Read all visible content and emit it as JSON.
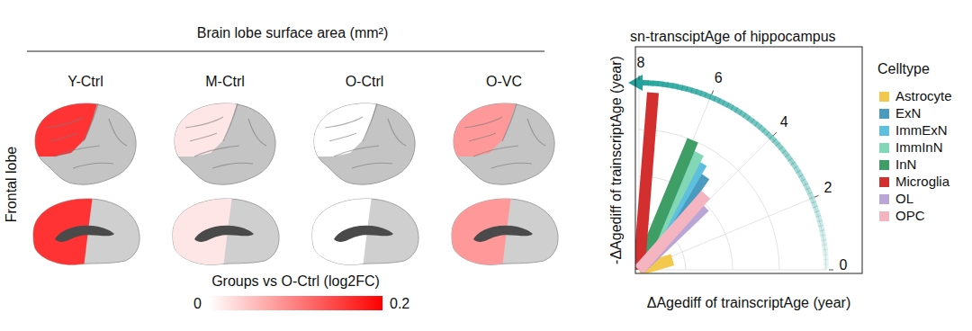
{
  "chart_data": [
    {
      "type": "heatmap",
      "title": "Brain lobe surface area (mm²)",
      "x": [
        "Y-Ctrl",
        "M-Ctrl",
        "O-Ctrl",
        "O-VC"
      ],
      "y": [
        "Frontal lobe"
      ],
      "values": [
        [
          0.16,
          0.02,
          0,
          0.08
        ]
      ],
      "colorbar": {
        "label": "Groups vs O-Ctrl (log2FC)",
        "range": [
          0,
          0.2
        ],
        "ticks": [
          0,
          0.2
        ]
      }
    },
    {
      "type": "polar",
      "title": "sn-transciptAge of hippocampus",
      "x_label": "ΔAgediff of trainscriptAge (year)",
      "y_label": "-ΔAgediff of trainscriptAge (year)",
      "legend_title": "Celltype",
      "categories": [
        "Astrocyte",
        "ExN",
        "ImmExN",
        "ImmInN",
        "InN",
        "Microglia",
        "OL",
        "OPC"
      ],
      "values": [
        1.5,
        4.9,
        5.3,
        5.6,
        6.0,
        7.6,
        3.9,
        4.3
      ],
      "colors": [
        "#f2c94c",
        "#4a9bbf",
        "#5cc0de",
        "#82d7b6",
        "#3f9e66",
        "#d32f2f",
        "#b9a6d6",
        "#f5b5c0"
      ],
      "ylim": [
        0,
        8
      ],
      "yticks": [
        0,
        2,
        4,
        6,
        8
      ],
      "grid": true,
      "legend": "right"
    }
  ]
}
